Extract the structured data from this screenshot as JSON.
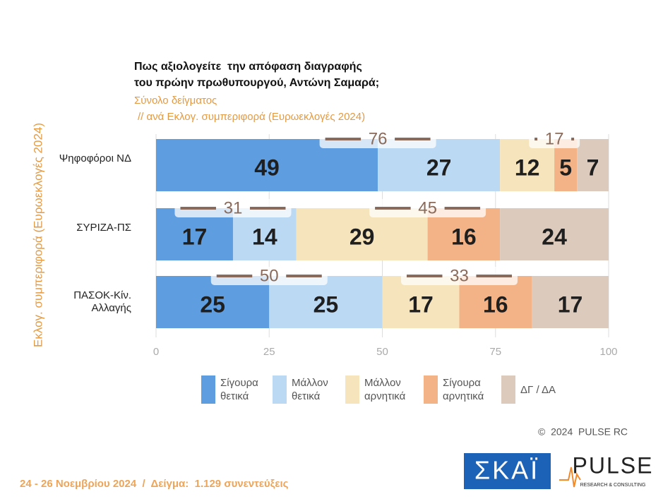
{
  "chart_data": {
    "type": "bar",
    "stacked": true,
    "horizontal": true,
    "title": [
      "Πως αξιολογείτε  την απόφαση διαγραφής",
      "του πρώην πρωθυπουργού, Αντώνη Σαμαρά;"
    ],
    "subtitle": [
      "Σύνολο δείγματος",
      "// ανά Εκλογ. συμπεριφορά (Ευρωεκλογές 2024)"
    ],
    "y_label": "Εκλογ. συμπεριφορά (Ευρωεκλογές 2024)",
    "categories": [
      "Ψηφοφόροι ΝΔ",
      "ΣΥΡΙΖΑ-ΠΣ",
      "ΠΑΣΟΚ-Κίν. Αλλαγής"
    ],
    "series": [
      {
        "name": "Σίγουρα θετικά",
        "color": "#5d9de0",
        "values": [
          49,
          17,
          25
        ]
      },
      {
        "name": "Μάλλον θετικά",
        "color": "#bcd9f4",
        "values": [
          27,
          14,
          25
        ]
      },
      {
        "name": "Μάλλον αρνητικά",
        "color": "#f6e4bd",
        "values": [
          12,
          29,
          17
        ]
      },
      {
        "name": "Σίγουρα αρνητικά",
        "color": "#f3b386",
        "values": [
          5,
          16,
          16
        ]
      },
      {
        "name": "ΔΓ / ΔΑ",
        "color": "#dccbbd",
        "values": [
          7,
          24,
          17
        ]
      }
    ],
    "positive_totals": [
      76,
      31,
      50
    ],
    "negative_totals": [
      17,
      45,
      33
    ],
    "xlim": [
      0,
      100
    ],
    "xticks": [
      0,
      25,
      50,
      75,
      100
    ],
    "grid": true,
    "legend": "bottom"
  },
  "footer": "24 - 26 Νοεμβρίου 2024  /  Δείγμα:  1.129 συνεντεύξεις",
  "copyright": "©  2024  PULSE RC",
  "logos": {
    "skai": "ΣΚΑΪ",
    "pulse": "PULSE",
    "pulse_tagline": "RESEARCH & CONSULTING"
  }
}
